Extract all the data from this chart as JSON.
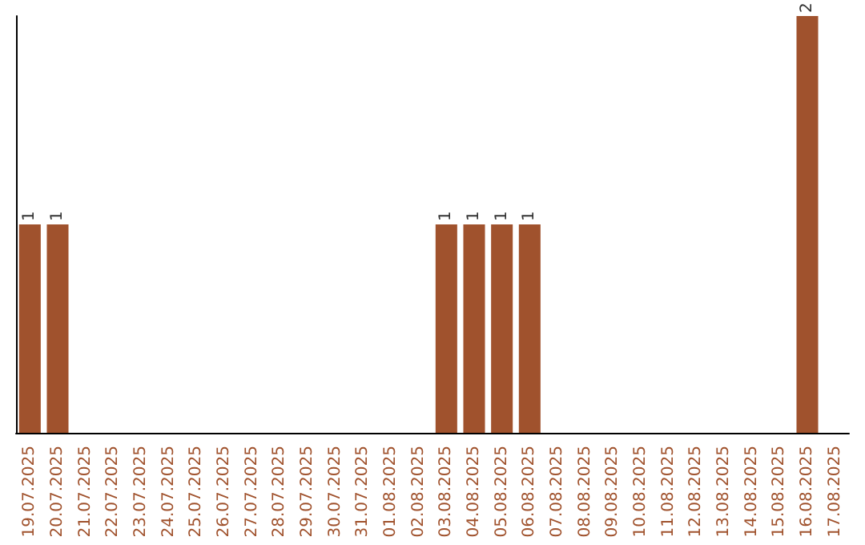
{
  "chart_data": {
    "type": "bar",
    "categories": [
      "19.07.2025",
      "20.07.2025",
      "21.07.2025",
      "22.07.2025",
      "23.07.2025",
      "24.07.2025",
      "25.07.2025",
      "26.07.2025",
      "27.07.2025",
      "28.07.2025",
      "29.07.2025",
      "30.07.2025",
      "31.07.2025",
      "01.08.2025",
      "02.08.2025",
      "03.08.2025",
      "04.08.2025",
      "05.08.2025",
      "06.08.2025",
      "07.08.2025",
      "08.08.2025",
      "09.08.2025",
      "10.08.2025",
      "11.08.2025",
      "12.08.2025",
      "13.08.2025",
      "14.08.2025",
      "15.08.2025",
      "16.08.2025",
      "17.08.2025"
    ],
    "values": [
      1,
      1,
      0,
      0,
      0,
      0,
      0,
      0,
      0,
      0,
      0,
      0,
      0,
      0,
      0,
      1,
      1,
      1,
      1,
      0,
      0,
      0,
      0,
      0,
      0,
      0,
      0,
      0,
      2,
      0
    ],
    "value_labels": [
      "1",
      "1",
      null,
      null,
      null,
      null,
      null,
      null,
      null,
      null,
      null,
      null,
      null,
      null,
      null,
      "1",
      "1",
      "1",
      "1",
      null,
      null,
      null,
      null,
      null,
      null,
      null,
      null,
      null,
      "2",
      null
    ],
    "color": "#a0522d",
    "tick_labels": "x"
  }
}
